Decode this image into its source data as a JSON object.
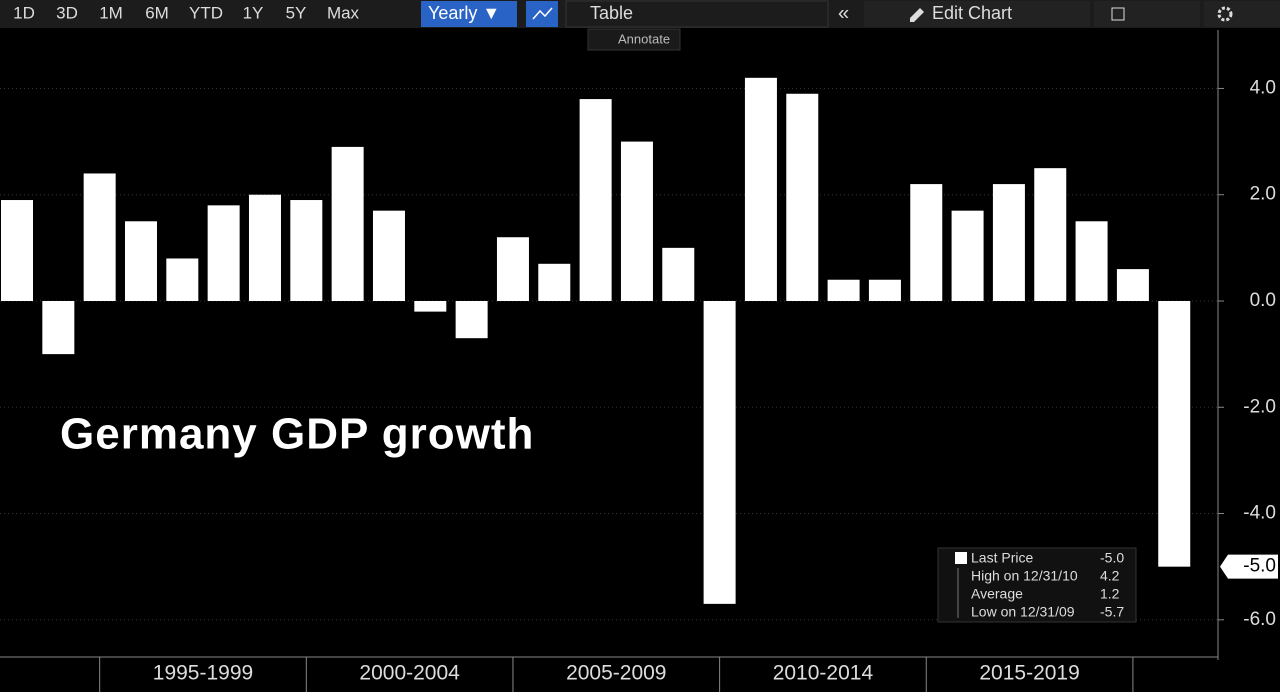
{
  "toolbar": {
    "ranges": [
      "1D",
      "3D",
      "1M",
      "6M",
      "YTD",
      "1Y",
      "5Y",
      "Max"
    ],
    "period": "Yearly ▼",
    "table": "Table",
    "edit": "Edit Chart",
    "annotate": "Annotate"
  },
  "chart_data": {
    "type": "bar",
    "title": "Germany GDP growth",
    "color": "#ffffff",
    "categories": [
      null,
      null,
      null,
      null,
      null,
      null,
      null,
      null,
      null,
      null,
      null,
      null,
      null,
      null,
      null,
      null,
      null,
      null,
      null,
      null,
      null,
      null,
      null,
      null,
      null,
      null,
      null,
      null,
      null
    ],
    "values": [
      1.9,
      -1.0,
      2.4,
      1.5,
      0.8,
      1.8,
      2.0,
      1.9,
      2.9,
      1.7,
      -0.2,
      -0.7,
      1.2,
      0.7,
      3.8,
      3.0,
      1.0,
      -5.7,
      4.2,
      3.9,
      0.4,
      0.4,
      2.2,
      1.7,
      2.2,
      2.5,
      1.5,
      0.6,
      -5.0
    ],
    "x_groups": [
      {
        "label": "1995-1999",
        "from": 3,
        "to": 7
      },
      {
        "label": "2000-2004",
        "from": 8,
        "to": 12
      },
      {
        "label": "2005-2009",
        "from": 13,
        "to": 17
      },
      {
        "label": "2010-2014",
        "from": 18,
        "to": 22
      },
      {
        "label": "2015-2019",
        "from": 23,
        "to": 27
      }
    ],
    "ylim": [
      -6.7,
      5.1
    ],
    "yticks": [
      {
        "value": -6,
        "label": "-6.0"
      },
      {
        "value": -4,
        "label": "-4.0"
      },
      {
        "value": -2,
        "label": "-2.0"
      },
      {
        "value": 0,
        "label": "0.0"
      },
      {
        "value": 2,
        "label": "2.0"
      },
      {
        "value": 4,
        "label": "4.0"
      }
    ],
    "grid": true,
    "last_price": {
      "value": -5.0,
      "label": "-5.0"
    },
    "legend": [
      {
        "name": "Last Price",
        "value": "-5.0"
      },
      {
        "name": "High on 12/31/10",
        "value": "4.2"
      },
      {
        "name": "Average",
        "value": "1.2"
      },
      {
        "name": "Low on 12/31/09",
        "value": "-5.7"
      }
    ]
  }
}
